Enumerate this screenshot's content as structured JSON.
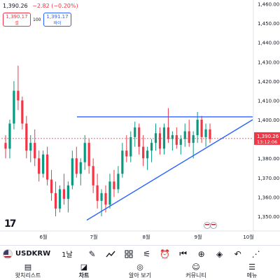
{
  "header": {
    "last_price": "1,390.26",
    "change": "−2.82 (−0.20%)"
  },
  "order": {
    "sell_price": "1,390.17",
    "sell_label": "셀",
    "spread": "100",
    "buy_price": "1,391.17",
    "buy_label": "바이"
  },
  "chart_data": {
    "type": "candlestick",
    "x_ticks": [
      "6월",
      "7월",
      "8월",
      "9월",
      "10월"
    ],
    "y_ticks": [
      1350,
      1360,
      1370,
      1380,
      1390,
      1400,
      1410,
      1420,
      1430,
      1440,
      1450,
      1460
    ],
    "y_tick_labels": [
      "1,350.00",
      "1,360.00",
      "1,370.00",
      "1,380.00",
      "1,390.00",
      "1,400.00",
      "1,410.00",
      "1,420.00",
      "1,430.00",
      "1,440.00",
      "1,450.00",
      "1,460.00"
    ],
    "ylim": [
      1346,
      1462
    ],
    "last_price_label": "1,390.26",
    "countdown_label": "13:12:06",
    "up_color": "#089981",
    "down_color": "#f23645",
    "candles": [
      [
        0,
        1388,
        1392,
        1380,
        1385
      ],
      [
        1,
        1385,
        1400,
        1380,
        1398
      ],
      [
        2,
        1398,
        1420,
        1395,
        1415
      ],
      [
        3,
        1415,
        1428,
        1405,
        1410
      ],
      [
        4,
        1410,
        1412,
        1395,
        1398
      ],
      [
        5,
        1398,
        1402,
        1380,
        1384
      ],
      [
        6,
        1384,
        1392,
        1378,
        1388
      ],
      [
        7,
        1388,
        1395,
        1376,
        1380
      ],
      [
        8,
        1380,
        1384,
        1368,
        1372
      ],
      [
        9,
        1372,
        1384,
        1370,
        1382
      ],
      [
        10,
        1382,
        1386,
        1366,
        1369
      ],
      [
        11,
        1369,
        1374,
        1358,
        1362
      ],
      [
        12,
        1362,
        1368,
        1350,
        1354
      ],
      [
        13,
        1354,
        1366,
        1352,
        1364
      ],
      [
        14,
        1364,
        1372,
        1356,
        1359
      ],
      [
        15,
        1359,
        1368,
        1352,
        1366
      ],
      [
        16,
        1366,
        1384,
        1364,
        1380
      ],
      [
        17,
        1380,
        1386,
        1370,
        1372
      ],
      [
        18,
        1372,
        1380,
        1366,
        1378
      ],
      [
        19,
        1378,
        1392,
        1374,
        1388
      ],
      [
        20,
        1388,
        1390,
        1372,
        1376
      ],
      [
        21,
        1376,
        1380,
        1362,
        1366
      ],
      [
        22,
        1366,
        1372,
        1354,
        1358
      ],
      [
        23,
        1358,
        1364,
        1350,
        1362
      ],
      [
        24,
        1362,
        1366,
        1352,
        1356
      ],
      [
        25,
        1356,
        1372,
        1354,
        1368
      ],
      [
        26,
        1368,
        1374,
        1360,
        1364
      ],
      [
        27,
        1364,
        1376,
        1362,
        1372
      ],
      [
        28,
        1372,
        1388,
        1370,
        1384
      ],
      [
        29,
        1384,
        1392,
        1378,
        1381
      ],
      [
        30,
        1381,
        1394,
        1378,
        1391
      ],
      [
        31,
        1391,
        1399,
        1386,
        1396
      ],
      [
        32,
        1396,
        1398,
        1382,
        1386
      ],
      [
        33,
        1386,
        1392,
        1376,
        1380
      ],
      [
        34,
        1380,
        1386,
        1374,
        1384
      ],
      [
        35,
        1384,
        1390,
        1378,
        1388
      ],
      [
        36,
        1388,
        1398,
        1384,
        1393
      ],
      [
        37,
        1393,
        1396,
        1382,
        1385
      ],
      [
        38,
        1385,
        1398,
        1382,
        1396
      ],
      [
        39,
        1396,
        1406,
        1388,
        1390
      ],
      [
        40,
        1390,
        1394,
        1384,
        1392
      ],
      [
        41,
        1392,
        1396,
        1385,
        1387
      ],
      [
        42,
        1387,
        1392,
        1382,
        1390
      ],
      [
        43,
        1390,
        1398,
        1386,
        1394
      ],
      [
        44,
        1394,
        1400,
        1386,
        1388
      ],
      [
        45,
        1388,
        1394,
        1380,
        1392
      ],
      [
        46,
        1392,
        1404,
        1388,
        1400
      ],
      [
        47,
        1400,
        1402,
        1388,
        1391
      ],
      [
        48,
        1391,
        1398,
        1386,
        1395
      ],
      [
        49,
        1395,
        1398,
        1388,
        1390
      ]
    ],
    "resistance_line": {
      "x1_index": 0,
      "x2_index": 49,
      "price": 1401.5
    },
    "support_line": {
      "x1_index": 0,
      "x2_index": 49,
      "start_price": 1348,
      "end_price": 1400
    }
  },
  "logo": "17",
  "toolbar": {
    "symbol": "USDKRW",
    "interval": "1날",
    "icons": [
      "pencil-icon",
      "indicators-icon",
      "templates-icon",
      "adjust-icon",
      "alert-icon",
      "replay-icon",
      "plus-icon",
      "layers-icon",
      "undo-icon",
      "more-icon"
    ]
  },
  "nav": [
    {
      "label": "왓치리스트",
      "icon": "watchlist-icon"
    },
    {
      "label": "차트",
      "icon": "chart-icon"
    },
    {
      "label": "알아 보기",
      "icon": "explore-icon"
    },
    {
      "label": "커뮤니티",
      "icon": "community-icon"
    },
    {
      "label": "메뉴",
      "icon": "menu-icon"
    }
  ]
}
